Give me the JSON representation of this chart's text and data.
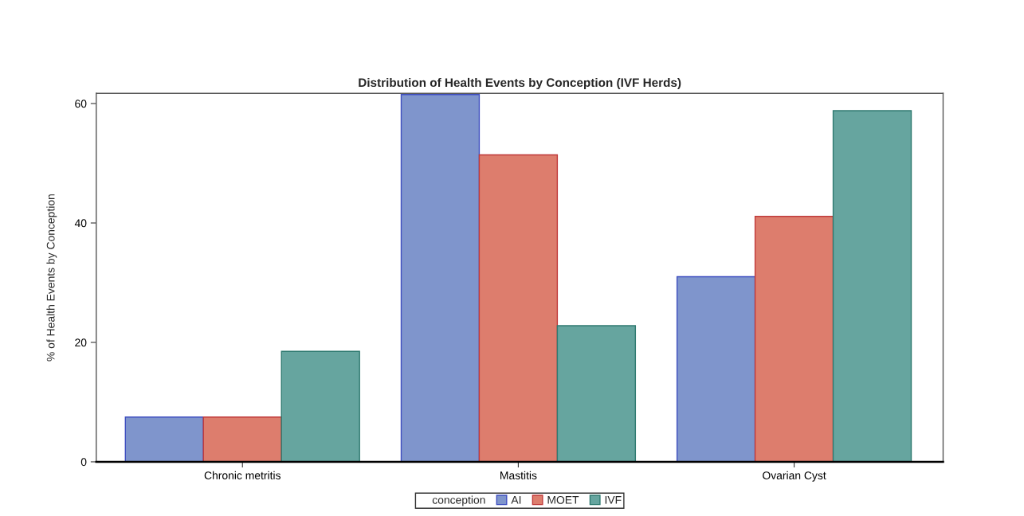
{
  "chart_data": {
    "type": "bar",
    "title": "Distribution of Health Events by Conception (IVF Herds)",
    "ylabel": "% of Health Events by Conception",
    "legend_title": "conception",
    "categories": [
      "Chronic metritis",
      "Mastitis",
      "Ovarian Cyst"
    ],
    "series": [
      {
        "name": "AI",
        "color": "#7f95cc",
        "values": [
          7.5,
          61.5,
          31.0
        ]
      },
      {
        "name": "MOET",
        "color": "#dd7d6d",
        "values": [
          7.5,
          51.4,
          41.1
        ]
      },
      {
        "name": "IVF",
        "color": "#66a59f",
        "values": [
          18.5,
          22.8,
          58.8
        ]
      }
    ],
    "ylim": [
      0,
      61.7
    ],
    "yticks": [
      0,
      20,
      40,
      60
    ],
    "grid": false,
    "legend": "bottom"
  }
}
